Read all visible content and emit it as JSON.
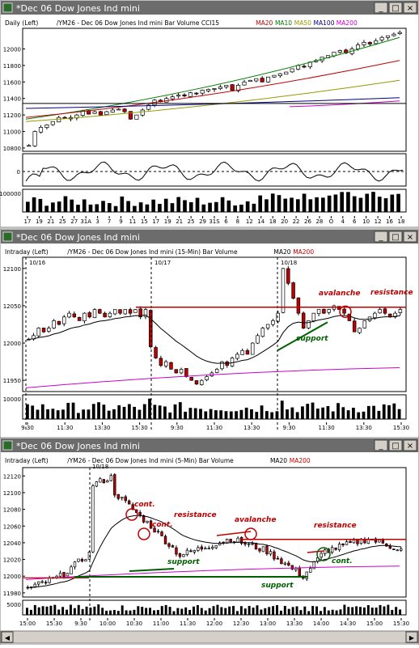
{
  "windows": [
    {
      "title": "*Dec 06  Dow Jones Ind mini",
      "subtitle": [
        {
          "text": "Daily  (Left)",
          "color": "#000000"
        },
        {
          "text": "/YM26 - Dec 06  Dow Jones Ind mini  Bar  Volume  CCI15",
          "color": "#000000"
        },
        {
          "text": "MA20",
          "color": "#c00000"
        },
        {
          "text": "MA10",
          "color": "#008000"
        },
        {
          "text": "MA50",
          "color": "#999900"
        },
        {
          "text": "MA100",
          "color": "#000080"
        },
        {
          "text": "MA200",
          "color": "#cc00cc"
        }
      ],
      "buttons": {
        "minimize": "_",
        "maximize": "□",
        "close": "×"
      }
    },
    {
      "title": "*Dec 06  Dow Jones Ind mini",
      "subtitle": [
        {
          "text": "Intraday  (Left)",
          "color": "#000000"
        },
        {
          "text": "/YM26 - Dec 06  Dow Jones Ind mini (15-Min)  Bar  Volume",
          "color": "#000000"
        },
        {
          "text": "MA20",
          "color": "#000000"
        },
        {
          "text": "MA200",
          "color": "#c00000"
        }
      ],
      "buttons": {
        "minimize": "_",
        "maximize": "□",
        "close": "×"
      }
    },
    {
      "title": "*Dec 06  Dow Jones Ind mini",
      "subtitle": [
        {
          "text": "Intraday  (Left)",
          "color": "#000000"
        },
        {
          "text": "/YM26 - Dec 06  Dow Jones Ind mini (5-Min)  Bar  Volume",
          "color": "#000000"
        },
        {
          "text": "MA20",
          "color": "#000000"
        },
        {
          "text": "MA200",
          "color": "#c00000"
        }
      ],
      "buttons": {
        "minimize": "_",
        "maximize": "□",
        "close": "×"
      }
    }
  ],
  "colors": {
    "titlebar": "#6c6c6c",
    "up_candle": "#ffffff",
    "down_candle": "#c00000",
    "volume": "#000000",
    "annotation_red": "#c00000",
    "annotation_green": "#006000",
    "ma20": "#c00000",
    "ma10": "#008000",
    "ma50": "#999900",
    "ma100": "#000080",
    "ma200": "#cc00cc"
  },
  "chart_data": [
    {
      "type": "candlestick",
      "title": "Daily",
      "ylim": [
        10760,
        12250
      ],
      "y_ticks": [
        10800,
        11000,
        11200,
        11400,
        11600,
        11800,
        12000
      ],
      "x_tick_labels": [
        "17",
        "19",
        "21",
        "25",
        "27",
        "31A",
        "3",
        "7",
        "9",
        "11",
        "15",
        "17",
        "19",
        "21",
        "25",
        "29",
        "31S",
        "6",
        "8",
        "12",
        "14",
        "18",
        "20",
        "22",
        "26",
        "28",
        "O",
        "4",
        "6",
        "10",
        "12",
        "16",
        "18"
      ],
      "closes": [
        10830,
        11000,
        11050,
        11080,
        11120,
        11170,
        11160,
        11170,
        11200,
        11250,
        11210,
        11240,
        11200,
        11240,
        11260,
        11270,
        11240,
        11150,
        11200,
        11260,
        11320,
        11380,
        11360,
        11400,
        11420,
        11440,
        11430,
        11470,
        11460,
        11500,
        11510,
        11520,
        11540,
        11560,
        11500,
        11560,
        11600,
        11620,
        11640,
        11600,
        11660,
        11680,
        11700,
        11720,
        11760,
        11800,
        11780,
        11840,
        11860,
        11900,
        11920,
        11960,
        11980,
        11950,
        12000,
        12050,
        12080,
        12060,
        12100,
        12140,
        12160,
        12180,
        12200
      ],
      "ma_lines": [
        {
          "name": "MA10",
          "values": [
            11150,
            12140
          ]
        },
        {
          "name": "MA20",
          "values": [
            11170,
            11860
          ]
        },
        {
          "name": "MA50",
          "values": [
            11120,
            11620
          ]
        },
        {
          "name": "MA100",
          "values": [
            11280,
            11410
          ]
        },
        {
          "name": "MA200",
          "values": [
            11300,
            11370
          ]
        }
      ],
      "resistance_level": 11340,
      "cci": {
        "y_tick_labels": [
          "0"
        ]
      },
      "volume": {
        "y_tick_labels": [
          "100000"
        ]
      }
    },
    {
      "type": "candlestick",
      "title": "15-Min",
      "ylim": [
        11935,
        12115
      ],
      "y_ticks": [
        11950,
        12000,
        12050,
        12100
      ],
      "x_tick_labels": [
        "9:30",
        "11:30",
        "13:30",
        "15:30",
        "9:30",
        "11:30",
        "13:30",
        "9:30",
        "11:30",
        "13:30",
        "15:30"
      ],
      "session_labels": [
        "10/16",
        "10/17",
        "10/18"
      ],
      "closes": [
        12005,
        12010,
        12020,
        12015,
        12020,
        12030,
        12025,
        12035,
        12040,
        12035,
        12030,
        12040,
        12035,
        12045,
        12040,
        12035,
        12040,
        12045,
        12040,
        12045,
        12040,
        12045,
        12035,
        12045,
        11995,
        11980,
        11970,
        11975,
        11965,
        11960,
        11965,
        11955,
        11950,
        11945,
        11950,
        11955,
        11960,
        11965,
        11975,
        11970,
        11980,
        11985,
        11990,
        11985,
        12000,
        12010,
        12020,
        12025,
        12030,
        12040,
        12100,
        12080,
        12060,
        12040,
        12020,
        12030,
        12040,
        12045,
        12040,
        12045,
        12050,
        12045,
        12040,
        12030,
        12015,
        12020,
        12030,
        12035,
        12040,
        12045,
        12040,
        12035,
        12040,
        12045
      ],
      "resistance_level": 12048,
      "volume": {
        "y_tick_labels": [
          "10000"
        ]
      },
      "annotations": [
        {
          "text": "avalanche",
          "color": "#c00000"
        },
        {
          "text": "resistance",
          "color": "#c00000"
        },
        {
          "text": "support",
          "color": "#006000"
        }
      ]
    },
    {
      "type": "candlestick",
      "title": "5-Min",
      "ylim": [
        11975,
        12130
      ],
      "y_ticks": [
        11980,
        12000,
        12020,
        12040,
        12060,
        12080,
        12100,
        12120
      ],
      "x_tick_labels": [
        "15:00",
        "15:30",
        "9:30",
        "10:00",
        "10:30",
        "11:00",
        "11:30",
        "12:00",
        "12:30",
        "13:00",
        "13:30",
        "14:00",
        "14:30",
        "15:00",
        "15:30"
      ],
      "session_label": "10/18",
      "resistance_level": 12044,
      "support_level": 11998,
      "volume": {
        "y_tick_labels": [
          "5000"
        ]
      },
      "annotations": [
        {
          "text": "cont.",
          "color": "#c00000"
        },
        {
          "text": "cont.",
          "color": "#c00000"
        },
        {
          "text": "resistance",
          "color": "#c00000"
        },
        {
          "text": "avalanche",
          "color": "#c00000"
        },
        {
          "text": "resistance",
          "color": "#c00000"
        },
        {
          "text": "support",
          "color": "#006000"
        },
        {
          "text": "support",
          "color": "#006000"
        },
        {
          "text": "cont.",
          "color": "#006000"
        }
      ]
    }
  ]
}
